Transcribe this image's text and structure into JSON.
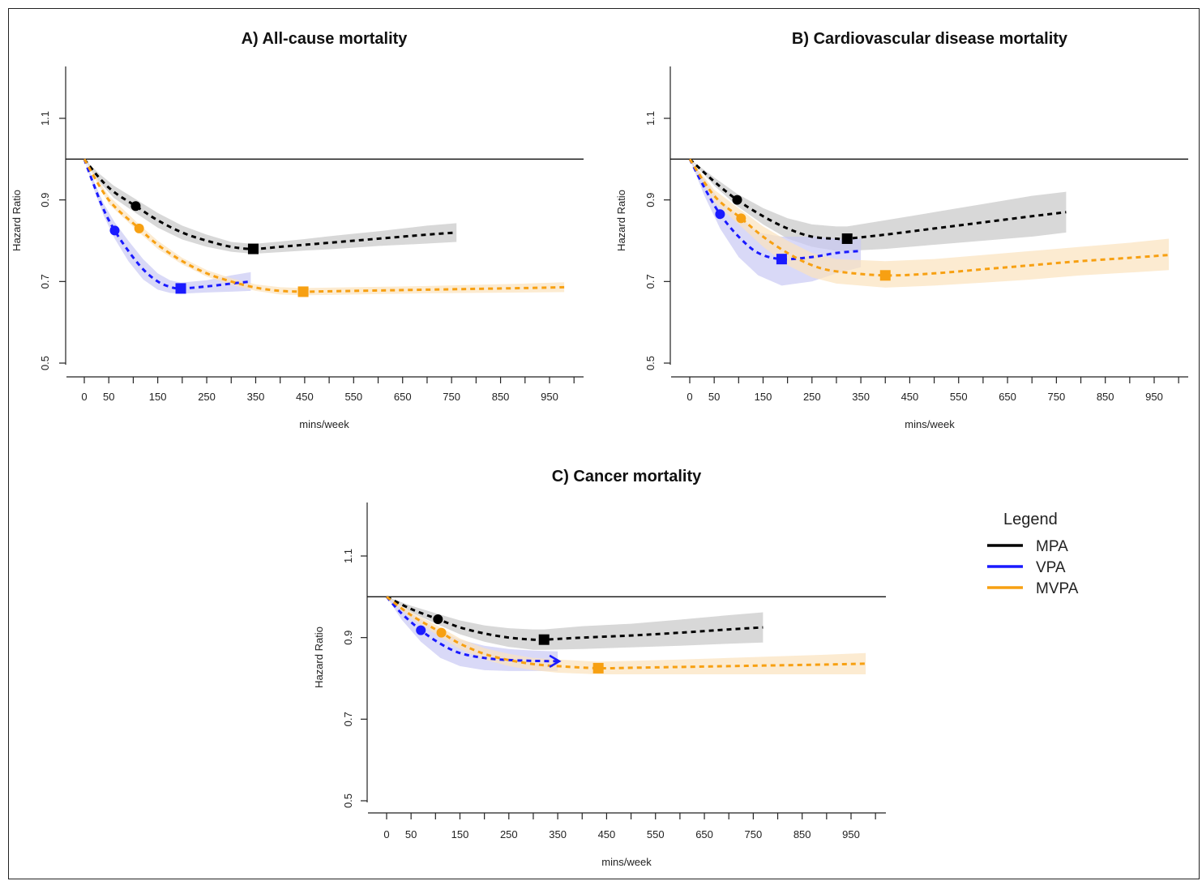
{
  "legend": {
    "title": "Legend",
    "items": [
      {
        "label": "MPA",
        "color": "#000000"
      },
      {
        "label": "VPA",
        "color": "#1a1aff"
      },
      {
        "label": "MVPA",
        "color": "#f7a012"
      }
    ]
  },
  "chart_data": [
    {
      "type": "line",
      "title": "A) All-cause mortality",
      "xlabel": "mins/week",
      "ylabel": "Hazard Ratio",
      "xlim": [
        0,
        1000
      ],
      "ylim": [
        0.5,
        1.2
      ],
      "xticks": [
        0,
        50,
        150,
        250,
        350,
        450,
        550,
        650,
        750,
        850,
        950
      ],
      "yticks": [
        0.5,
        0.7,
        0.9,
        1.1
      ],
      "reference_line": 1.0,
      "series": [
        {
          "name": "MPA",
          "color": "#000000",
          "band": "#c8c8c8",
          "x": [
            0,
            30,
            60,
            105,
            150,
            200,
            250,
            300,
            345,
            400,
            450,
            500,
            550,
            600,
            650,
            700,
            760
          ],
          "y": [
            1.0,
            0.955,
            0.92,
            0.885,
            0.85,
            0.82,
            0.8,
            0.785,
            0.78,
            0.785,
            0.79,
            0.795,
            0.8,
            0.805,
            0.81,
            0.815,
            0.82
          ],
          "lower": [
            1.0,
            0.945,
            0.905,
            0.868,
            0.832,
            0.803,
            0.785,
            0.773,
            0.768,
            0.772,
            0.776,
            0.779,
            0.783,
            0.787,
            0.79,
            0.793,
            0.797
          ],
          "upper": [
            1.0,
            0.965,
            0.935,
            0.902,
            0.868,
            0.837,
            0.815,
            0.797,
            0.792,
            0.798,
            0.804,
            0.811,
            0.817,
            0.823,
            0.83,
            0.837,
            0.843
          ],
          "markers": [
            {
              "shape": "circle",
              "x": 105,
              "y": 0.885
            },
            {
              "shape": "square",
              "x": 345,
              "y": 0.78
            }
          ]
        },
        {
          "name": "VPA",
          "color": "#1a1aff",
          "band": "#c9c9f3",
          "x": [
            0,
            20,
            40,
            62,
            90,
            120,
            150,
            175,
            197,
            250,
            300,
            340
          ],
          "y": [
            1.0,
            0.935,
            0.875,
            0.825,
            0.775,
            0.73,
            0.7,
            0.687,
            0.683,
            0.688,
            0.695,
            0.7
          ],
          "lower": [
            1.0,
            0.925,
            0.86,
            0.805,
            0.75,
            0.705,
            0.68,
            0.672,
            0.67,
            0.673,
            0.675,
            0.677
          ],
          "upper": [
            1.0,
            0.945,
            0.89,
            0.845,
            0.8,
            0.755,
            0.72,
            0.703,
            0.697,
            0.703,
            0.715,
            0.723
          ],
          "markers": [
            {
              "shape": "circle",
              "x": 62,
              "y": 0.825
            },
            {
              "shape": "square",
              "x": 197,
              "y": 0.683
            }
          ]
        },
        {
          "name": "MVPA",
          "color": "#f7a012",
          "band": "#fbe3bd",
          "x": [
            0,
            50,
            112,
            150,
            200,
            250,
            300,
            350,
            400,
            447,
            500,
            600,
            700,
            800,
            900,
            980
          ],
          "y": [
            1.0,
            0.9,
            0.83,
            0.79,
            0.75,
            0.72,
            0.7,
            0.685,
            0.677,
            0.675,
            0.676,
            0.678,
            0.68,
            0.682,
            0.684,
            0.686
          ],
          "lower": [
            1.0,
            0.89,
            0.82,
            0.78,
            0.742,
            0.712,
            0.692,
            0.677,
            0.668,
            0.666,
            0.667,
            0.669,
            0.671,
            0.672,
            0.673,
            0.674
          ],
          "upper": [
            1.0,
            0.91,
            0.84,
            0.8,
            0.758,
            0.728,
            0.708,
            0.693,
            0.686,
            0.684,
            0.685,
            0.687,
            0.689,
            0.692,
            0.695,
            0.698
          ],
          "markers": [
            {
              "shape": "circle",
              "x": 112,
              "y": 0.83
            },
            {
              "shape": "square",
              "x": 447,
              "y": 0.675
            }
          ]
        }
      ]
    },
    {
      "type": "line",
      "title": "B) Cardiovascular disease mortality",
      "xlabel": "mins/week",
      "ylabel": "Hazard Ratio",
      "xlim": [
        0,
        1000
      ],
      "ylim": [
        0.5,
        1.2
      ],
      "xticks": [
        0,
        50,
        150,
        250,
        350,
        450,
        550,
        650,
        750,
        850,
        950
      ],
      "yticks": [
        0.5,
        0.7,
        0.9,
        1.1
      ],
      "reference_line": 1.0,
      "series": [
        {
          "name": "MPA",
          "color": "#000000",
          "band": "#c8c8c8",
          "x": [
            0,
            50,
            97,
            150,
            200,
            250,
            300,
            322,
            400,
            500,
            600,
            700,
            770
          ],
          "y": [
            1.0,
            0.945,
            0.9,
            0.86,
            0.83,
            0.81,
            0.805,
            0.805,
            0.815,
            0.83,
            0.845,
            0.86,
            0.87
          ],
          "lower": [
            1.0,
            0.935,
            0.885,
            0.84,
            0.805,
            0.785,
            0.775,
            0.775,
            0.78,
            0.79,
            0.8,
            0.81,
            0.82
          ],
          "upper": [
            1.0,
            0.955,
            0.915,
            0.88,
            0.855,
            0.84,
            0.835,
            0.835,
            0.85,
            0.87,
            0.89,
            0.91,
            0.92
          ],
          "markers": [
            {
              "shape": "circle",
              "x": 97,
              "y": 0.9
            },
            {
              "shape": "square",
              "x": 322,
              "y": 0.805
            }
          ]
        },
        {
          "name": "VPA",
          "color": "#1a1aff",
          "band": "#c9c9f3",
          "x": [
            0,
            30,
            62,
            100,
            140,
            188,
            250,
            300,
            350
          ],
          "y": [
            1.0,
            0.93,
            0.865,
            0.81,
            0.77,
            0.755,
            0.76,
            0.77,
            0.775
          ],
          "lower": [
            1.0,
            0.91,
            0.83,
            0.76,
            0.715,
            0.69,
            0.7,
            0.72,
            0.735
          ],
          "upper": [
            1.0,
            0.95,
            0.9,
            0.86,
            0.82,
            0.81,
            0.81,
            0.805,
            0.805
          ],
          "markers": [
            {
              "shape": "circle",
              "x": 62,
              "y": 0.865
            },
            {
              "shape": "square",
              "x": 188,
              "y": 0.755
            }
          ]
        },
        {
          "name": "MVPA",
          "color": "#f7a012",
          "band": "#fbe3bd",
          "x": [
            0,
            50,
            105,
            150,
            200,
            250,
            300,
            400,
            500,
            600,
            700,
            800,
            900,
            980
          ],
          "y": [
            1.0,
            0.91,
            0.855,
            0.81,
            0.77,
            0.74,
            0.725,
            0.715,
            0.72,
            0.73,
            0.74,
            0.75,
            0.758,
            0.765
          ],
          "lower": [
            1.0,
            0.895,
            0.835,
            0.785,
            0.74,
            0.71,
            0.695,
            0.685,
            0.69,
            0.697,
            0.705,
            0.715,
            0.722,
            0.728
          ],
          "upper": [
            1.0,
            0.925,
            0.875,
            0.835,
            0.8,
            0.77,
            0.755,
            0.75,
            0.755,
            0.765,
            0.775,
            0.785,
            0.795,
            0.805
          ],
          "markers": [
            {
              "shape": "circle",
              "x": 105,
              "y": 0.855
            },
            {
              "shape": "square",
              "x": 400,
              "y": 0.715
            }
          ]
        }
      ]
    },
    {
      "type": "line",
      "title": "C) Cancer mortality",
      "xlabel": "mins/week",
      "ylabel": "Hazard Ratio",
      "xlim": [
        0,
        1000
      ],
      "ylim": [
        0.5,
        1.2
      ],
      "xticks": [
        0,
        50,
        150,
        250,
        350,
        450,
        550,
        650,
        750,
        850,
        950
      ],
      "yticks": [
        0.5,
        0.7,
        0.9,
        1.1
      ],
      "reference_line": 1.0,
      "series": [
        {
          "name": "MPA",
          "color": "#000000",
          "band": "#c8c8c8",
          "x": [
            0,
            50,
            105,
            150,
            200,
            250,
            300,
            322,
            400,
            500,
            600,
            700,
            770
          ],
          "y": [
            1.0,
            0.97,
            0.945,
            0.925,
            0.91,
            0.9,
            0.895,
            0.895,
            0.9,
            0.905,
            0.912,
            0.92,
            0.925
          ],
          "lower": [
            1.0,
            0.962,
            0.932,
            0.908,
            0.89,
            0.877,
            0.87,
            0.87,
            0.872,
            0.876,
            0.88,
            0.885,
            0.888
          ],
          "upper": [
            1.0,
            0.978,
            0.958,
            0.942,
            0.93,
            0.923,
            0.92,
            0.92,
            0.928,
            0.934,
            0.944,
            0.955,
            0.962
          ],
          "markers": [
            {
              "shape": "circle",
              "x": 105,
              "y": 0.945
            },
            {
              "shape": "square",
              "x": 322,
              "y": 0.895
            }
          ]
        },
        {
          "name": "VPA",
          "color": "#1a1aff",
          "band": "#c9c9f3",
          "x": [
            0,
            30,
            70,
            110,
            150,
            200,
            250,
            300,
            350
          ],
          "y": [
            1.0,
            0.96,
            0.918,
            0.885,
            0.862,
            0.85,
            0.845,
            0.843,
            0.842
          ],
          "lower": [
            1.0,
            0.945,
            0.89,
            0.85,
            0.83,
            0.82,
            0.818,
            0.818,
            0.818
          ],
          "upper": [
            1.0,
            0.975,
            0.945,
            0.915,
            0.895,
            0.88,
            0.872,
            0.868,
            0.866
          ],
          "markers": [
            {
              "shape": "circle",
              "x": 70,
              "y": 0.918
            },
            {
              "shape": "arrow",
              "x": 350,
              "y": 0.842
            }
          ]
        },
        {
          "name": "MVPA",
          "color": "#f7a012",
          "band": "#fbe3bd",
          "x": [
            0,
            50,
            112,
            150,
            200,
            250,
            300,
            350,
            433,
            500,
            600,
            700,
            800,
            900,
            980
          ],
          "y": [
            1.0,
            0.955,
            0.912,
            0.885,
            0.86,
            0.845,
            0.835,
            0.83,
            0.825,
            0.826,
            0.828,
            0.83,
            0.832,
            0.834,
            0.836
          ],
          "lower": [
            1.0,
            0.947,
            0.9,
            0.872,
            0.846,
            0.83,
            0.82,
            0.814,
            0.81,
            0.81,
            0.81,
            0.81,
            0.81,
            0.81,
            0.81
          ],
          "upper": [
            1.0,
            0.963,
            0.924,
            0.898,
            0.874,
            0.86,
            0.85,
            0.846,
            0.841,
            0.843,
            0.846,
            0.85,
            0.854,
            0.858,
            0.862
          ],
          "markers": [
            {
              "shape": "circle",
              "x": 112,
              "y": 0.912
            },
            {
              "shape": "square",
              "x": 433,
              "y": 0.825
            }
          ]
        }
      ]
    }
  ]
}
